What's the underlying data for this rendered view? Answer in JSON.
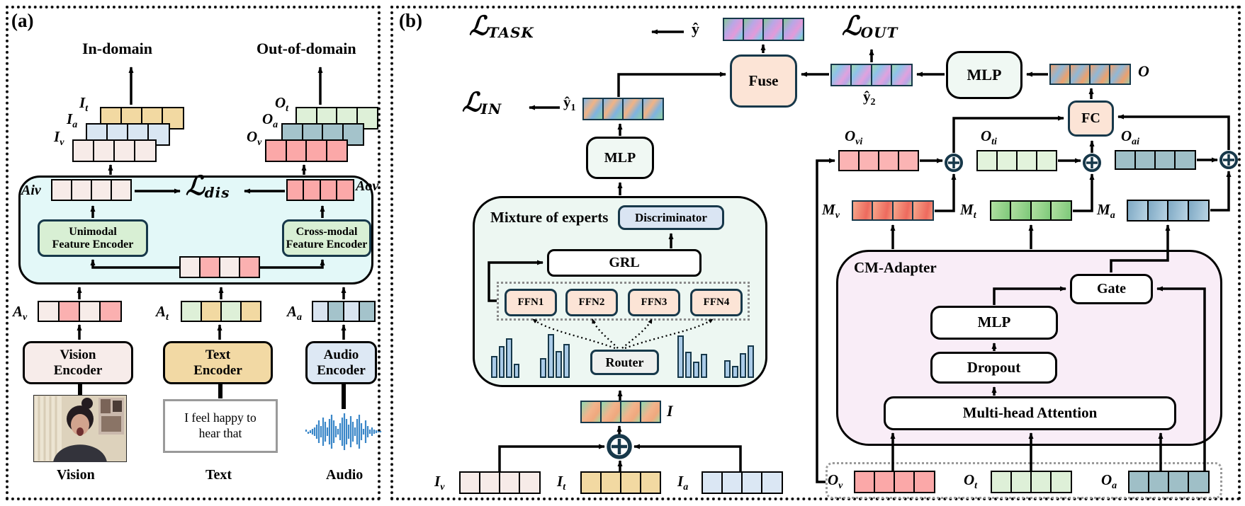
{
  "palette": {
    "cyan_container": "#e3f8f8",
    "moe_container": "#edf7f2",
    "adapter_container": "#f9edf7",
    "peach_node": "#fce4d6",
    "green_node": "#d8efd4",
    "blue_node": "#dae5f3",
    "navy_border": "#17384a",
    "hist_bar": "#aacbe8",
    "waveform_blue": "#3a87c8",
    "pink_token": "#fba8a8",
    "tan_token": "#f2d9a2",
    "teal_token": "#9fbfc7",
    "green_token": "#def0d8"
  },
  "panel_a": {
    "tag": "(a)",
    "headings": {
      "in": "In-domain",
      "out": "Out-of-domain"
    },
    "labels": {
      "it": {
        "b": "I",
        "s": "t"
      },
      "ia": {
        "b": "I",
        "s": "a"
      },
      "iv": {
        "b": "I",
        "s": "v"
      },
      "ot": {
        "b": "O",
        "s": "t"
      },
      "oa": {
        "b": "O",
        "s": "a"
      },
      "ov": {
        "b": "O",
        "s": "v"
      },
      "aiv": "Aiv",
      "aov": "Aov",
      "av": {
        "b": "A",
        "s": "v"
      },
      "at": {
        "b": "A",
        "s": "t"
      },
      "aa": {
        "b": "A",
        "s": "a"
      }
    },
    "loss_dis": {
      "b": "ℒ",
      "s": "dis"
    },
    "boxes": {
      "unimodal": {
        "l1": "Unimodal",
        "l2": "Feature Encoder"
      },
      "crossmodal": {
        "l1": "Cross-modal",
        "l2": "Feature Encoder"
      },
      "vision": {
        "l1": "Vision",
        "l2": "Encoder"
      },
      "text": {
        "l1": "Text",
        "l2": "Encoder"
      },
      "audio": {
        "l1": "Audio",
        "l2": "Encoder"
      }
    },
    "sample_text": {
      "l1": "I feel happy to",
      "l2": "hear that"
    },
    "modalities": {
      "vision": "Vision",
      "text": "Text",
      "audio": "Audio"
    }
  },
  "panel_b": {
    "tag": "(b)",
    "losses": {
      "task": {
        "b": "ℒ",
        "s": "TASK"
      },
      "in": {
        "b": "ℒ",
        "s": "IN"
      },
      "out": {
        "b": "ℒ",
        "s": "OUT"
      }
    },
    "preds": {
      "y": "ŷ",
      "y1": {
        "b": "ŷ",
        "s": "1"
      },
      "y2": {
        "b": "ŷ",
        "s": "2"
      }
    },
    "nodes": {
      "fuse": "Fuse",
      "mlp_top": "MLP",
      "fc": "FC",
      "mlp_mid": "MLP",
      "discriminator": "Discriminator",
      "grl": "GRL",
      "router": "Router",
      "gate": "Gate",
      "mlp_cm": "MLP",
      "dropout": "Dropout",
      "mha": "Multi-head Attention"
    },
    "moe": {
      "title": "Mixture of experts",
      "ffn": [
        "FFN1",
        "FFN2",
        "FFN3",
        "FFN4"
      ],
      "histograms": [
        [
          55,
          80,
          100,
          35
        ],
        [
          45,
          100,
          62,
          78
        ],
        [
          100,
          62,
          38,
          56
        ],
        [
          52,
          36,
          72,
          95
        ]
      ]
    },
    "cm_adapter": {
      "title": "CM-Adapter"
    },
    "labels": {
      "o": "O",
      "i": "I",
      "iv": {
        "b": "I",
        "s": "v"
      },
      "it": {
        "b": "I",
        "s": "t"
      },
      "ia": {
        "b": "I",
        "s": "a"
      },
      "ovi": {
        "b": "O",
        "s": "vi"
      },
      "oti": {
        "b": "O",
        "s": "ti"
      },
      "oai": {
        "b": "O",
        "s": "ai"
      },
      "mv": {
        "b": "M",
        "s": "v"
      },
      "mt": {
        "b": "M",
        "s": "t"
      },
      "ma": {
        "b": "M",
        "s": "a"
      },
      "ov": {
        "b": "O",
        "s": "v"
      },
      "ot": {
        "b": "O",
        "s": "t"
      },
      "oa": {
        "b": "O",
        "s": "a"
      }
    }
  }
}
